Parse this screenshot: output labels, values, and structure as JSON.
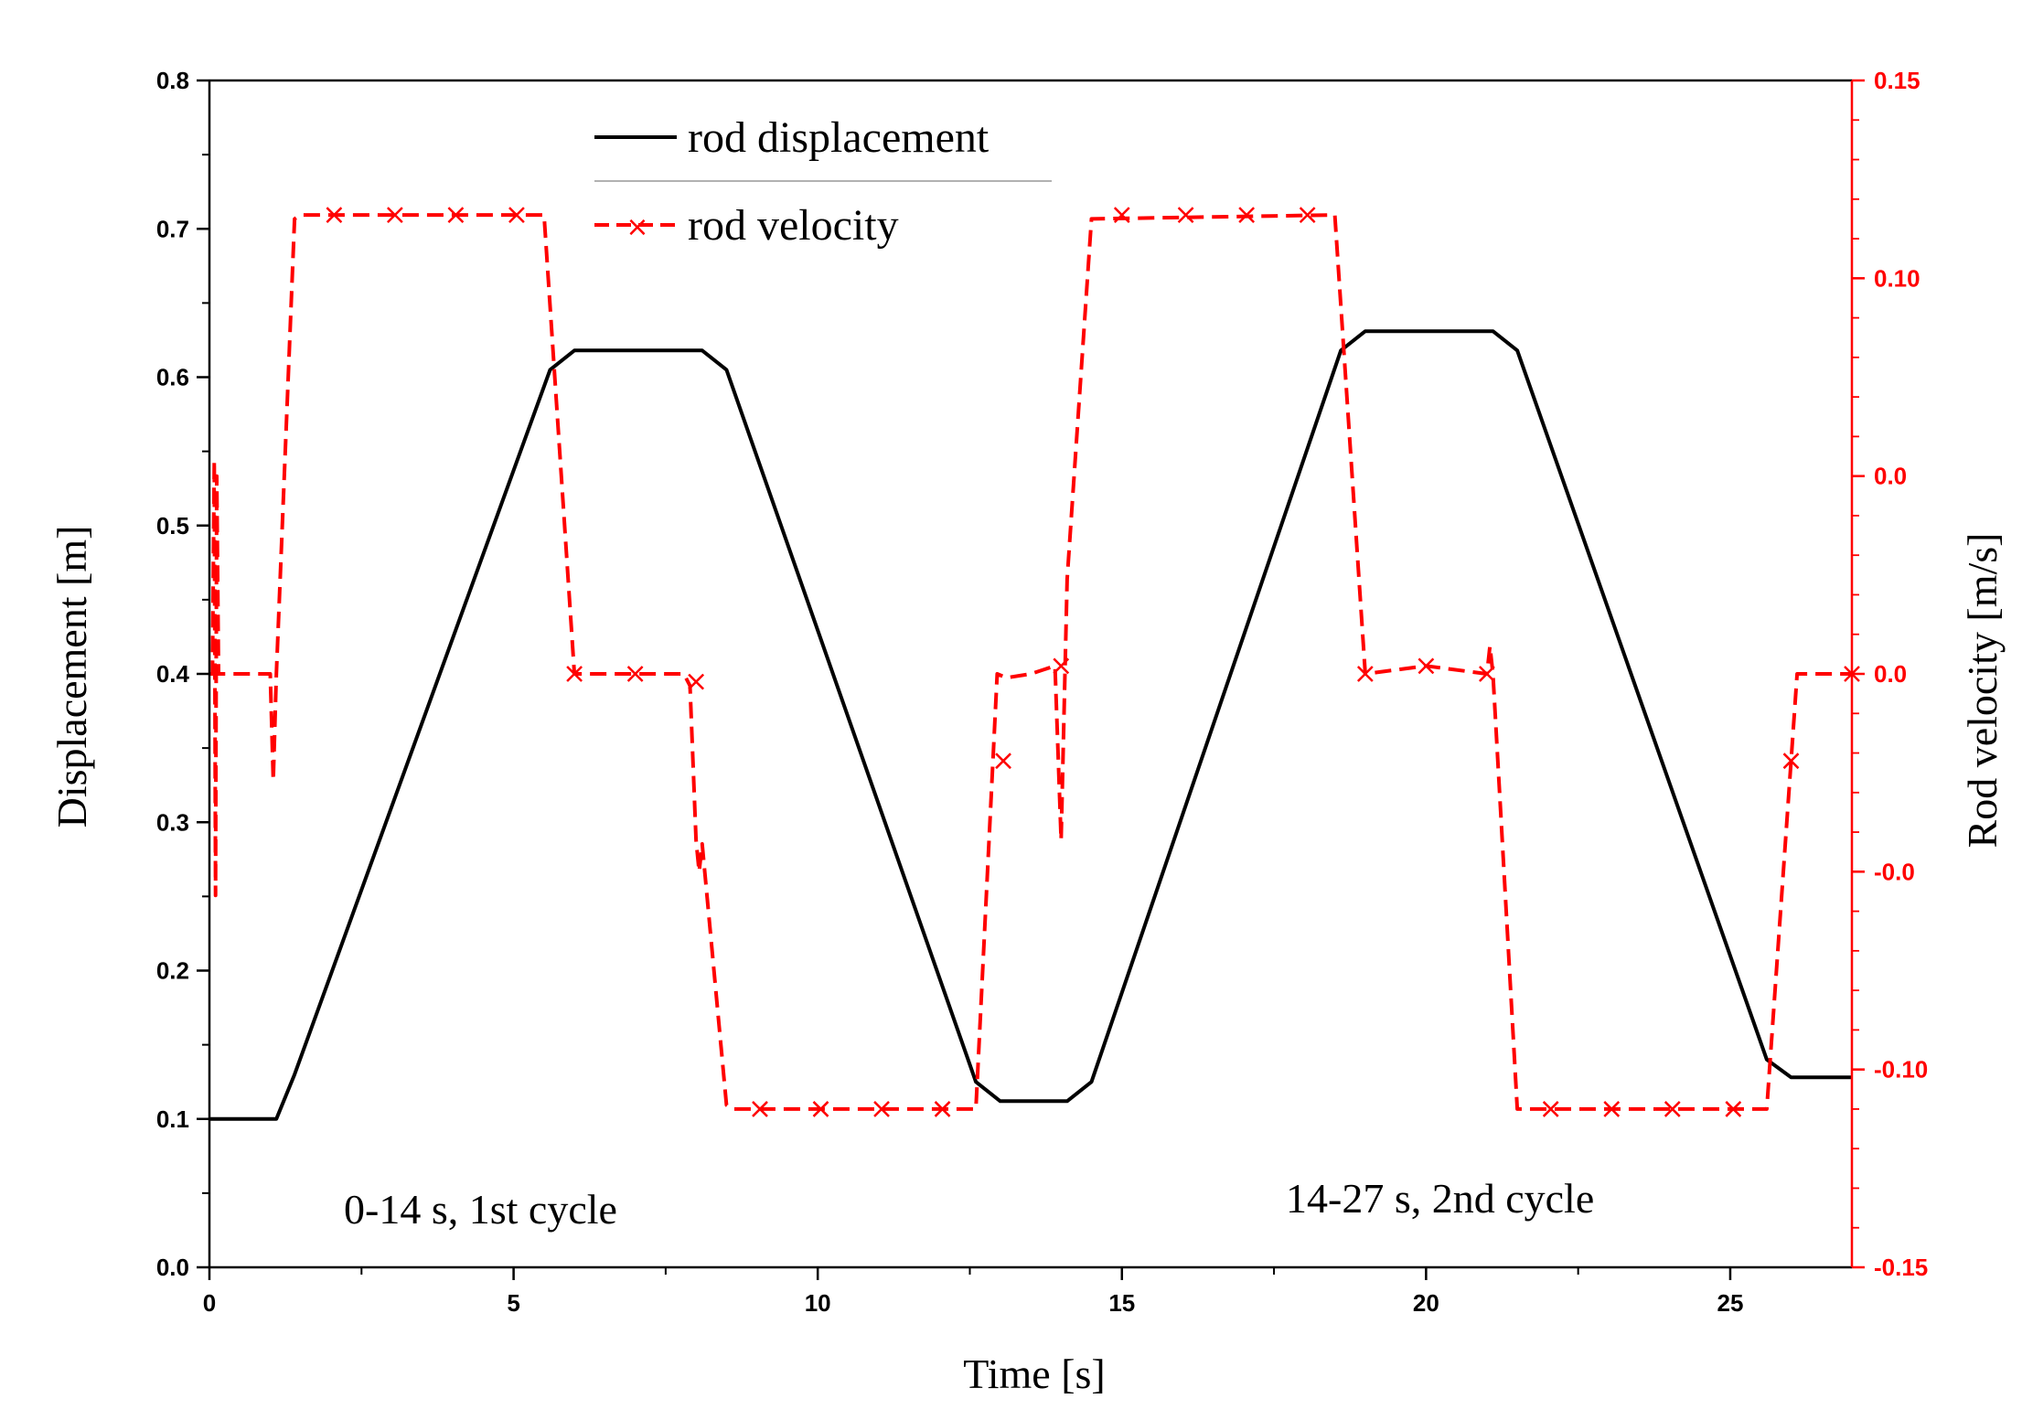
{
  "chart_data": {
    "type": "line",
    "title": "",
    "xlabel": "Time [s]",
    "ylabel_left": "Displacement [m]",
    "ylabel_right": "Rod velocity [m/s]",
    "xlim": [
      0,
      27
    ],
    "ylim_left": [
      0.0,
      0.8
    ],
    "ylim_right": [
      -0.15,
      0.15
    ],
    "x_ticks": [
      "0",
      "5",
      "10",
      "15",
      "20",
      "25"
    ],
    "y_left_ticks": [
      "0.0",
      "0.1",
      "0.2",
      "0.3",
      "0.4",
      "0.5",
      "0.6",
      "0.7",
      "0.8"
    ],
    "y_right_ticks": [
      "-0.15",
      "-0.10",
      "-0.0",
      "0.0",
      "0.0",
      "0.10",
      "0.15"
    ],
    "grid": false,
    "legend_position": "top-left",
    "legend": [
      "rod displacement",
      "rod velocity"
    ],
    "annotations": [
      "0-14 s, 1st cycle",
      "14-27 s, 2nd cycle"
    ],
    "colors": {
      "displacement": "#000000",
      "velocity": "#ff0000",
      "axes": "#000000",
      "right_axis": "#ff0000"
    },
    "series": [
      {
        "name": "rod displacement",
        "axis": "left",
        "style": "solid",
        "x": [
          0,
          1.1,
          1.4,
          5.6,
          6.0,
          8.1,
          8.5,
          12.6,
          13.0,
          14.1,
          14.5,
          18.6,
          19.0,
          21.1,
          21.5,
          25.6,
          26.0,
          27.0
        ],
        "y": [
          0.1,
          0.1,
          0.13,
          0.605,
          0.618,
          0.618,
          0.605,
          0.125,
          0.112,
          0.112,
          0.125,
          0.618,
          0.631,
          0.631,
          0.618,
          0.14,
          0.128,
          0.128
        ]
      },
      {
        "name": "rod velocity",
        "axis": "right",
        "style": "dashed",
        "marker": "x",
        "x": [
          0,
          0.05,
          0.08,
          0.1,
          0.12,
          0.15,
          1.0,
          1.05,
          1.1,
          1.4,
          1.5,
          5.5,
          6.0,
          7.8,
          7.9,
          8.0,
          8.05,
          8.1,
          8.5,
          8.6,
          12.4,
          12.6,
          12.95,
          13.1,
          13.5,
          13.9,
          14.0,
          14.1,
          14.5,
          18.5,
          19.0,
          20.0,
          21.0,
          21.05,
          21.1,
          21.5,
          25.6,
          26.0,
          26.1,
          27.0
        ],
        "y": [
          0.0,
          0.0,
          0.054,
          -0.056,
          0.05,
          0.0,
          0.0,
          -0.027,
          0.0,
          0.115,
          0.116,
          0.116,
          0.0,
          0.0,
          -0.003,
          -0.042,
          -0.05,
          -0.043,
          -0.109,
          -0.11,
          -0.11,
          -0.11,
          0.0,
          -0.001,
          0.0,
          0.002,
          -0.042,
          0.024,
          0.115,
          0.116,
          0.0,
          0.002,
          0.0,
          0.007,
          0.0,
          -0.11,
          -0.11,
          -0.022,
          0.0,
          0.0
        ]
      }
    ],
    "velocity_markers": {
      "x": [
        2.05,
        3.05,
        4.05,
        5.05,
        6.0,
        7.0,
        8.0,
        9.05,
        10.05,
        11.05,
        12.05,
        13.05,
        14.0,
        15.0,
        16.05,
        17.05,
        18.05,
        19.0,
        20.0,
        21.0,
        22.05,
        23.05,
        24.05,
        25.05,
        26.0,
        27.0
      ],
      "y": [
        0.116,
        0.116,
        0.116,
        0.116,
        0.0,
        0.0,
        -0.002,
        -0.11,
        -0.11,
        -0.11,
        -0.11,
        -0.022,
        0.002,
        0.116,
        0.116,
        0.116,
        0.116,
        0.0,
        0.002,
        0.0,
        -0.11,
        -0.11,
        -0.11,
        -0.11,
        -0.022,
        0.0
      ]
    }
  }
}
